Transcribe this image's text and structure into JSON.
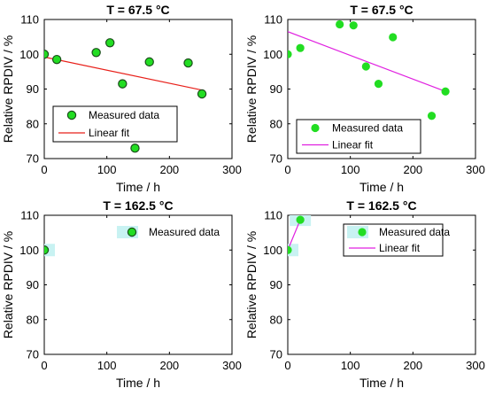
{
  "figure": {
    "colors": {
      "marker_fill": "#22dd22",
      "marker_edge": "#1a4d1a",
      "fit_red": "#e8201a",
      "fit_magenta": "#e020e0",
      "highlight": "#c8f2f2"
    }
  },
  "chart_data": [
    {
      "type": "scatter",
      "title": "T = 67.5 °C",
      "xlabel": "Time / h",
      "ylabel": "Relative RPDIV / %",
      "xlim": [
        0,
        300
      ],
      "ylim": [
        70,
        110
      ],
      "xticks": [
        "0",
        "100",
        "200",
        "300"
      ],
      "yticks": [
        "70",
        "80",
        "90",
        "100",
        "110"
      ],
      "marker_edge": true,
      "series": [
        {
          "name": "Measured data",
          "x": [
            0,
            20,
            83,
            105,
            125,
            145,
            168,
            230,
            252
          ],
          "y": [
            100,
            98.5,
            100.5,
            103.3,
            91.5,
            73,
            97.8,
            97.5,
            88.6
          ]
        }
      ],
      "fit": {
        "name": "Linear fit",
        "color": "#e8201a",
        "x": [
          0,
          252
        ],
        "y": [
          99.2,
          89.7
        ]
      },
      "legend": {
        "entries": [
          "Measured data",
          "Linear fit"
        ],
        "location": "lower-left"
      }
    },
    {
      "type": "scatter",
      "title": "T = 67.5 °C",
      "xlabel": "Time / h",
      "ylabel": "Relative RPDIV / %",
      "xlim": [
        0,
        300
      ],
      "ylim": [
        70,
        110
      ],
      "xticks": [
        "0",
        "100",
        "200",
        "300"
      ],
      "yticks": [
        "70",
        "80",
        "90",
        "100",
        "110"
      ],
      "marker_edge": false,
      "series": [
        {
          "name": "Measured data",
          "x": [
            0,
            20,
            83,
            105,
            125,
            145,
            168,
            230,
            252
          ],
          "y": [
            100,
            101.8,
            108.6,
            108.3,
            96.5,
            91.5,
            104.9,
            82.3,
            89.3
          ]
        }
      ],
      "fit": {
        "name": "Linear fit",
        "color": "#e020e0",
        "x": [
          0,
          252
        ],
        "y": [
          106.5,
          89.3
        ]
      },
      "legend": {
        "entries": [
          "Measured data",
          "Linear fit"
        ],
        "location": "lower-left"
      }
    },
    {
      "type": "scatter",
      "title": "T = 162.5 °C",
      "xlabel": "Time / h",
      "ylabel": "Relative RPDIV / %",
      "xlim": [
        0,
        300
      ],
      "ylim": [
        70,
        110
      ],
      "xticks": [
        "0",
        "100",
        "200",
        "300"
      ],
      "yticks": [
        "70",
        "80",
        "90",
        "100",
        "110"
      ],
      "marker_edge": true,
      "series": [
        {
          "name": "Measured data",
          "x": [
            0
          ],
          "y": [
            100
          ]
        }
      ],
      "legend": {
        "entries": [
          "Measured data"
        ],
        "location": "top-right"
      }
    },
    {
      "type": "scatter",
      "title": "T = 162.5 °C",
      "xlabel": "Time / h",
      "ylabel": "Relative RPDIV / %",
      "xlim": [
        0,
        300
      ],
      "ylim": [
        70,
        110
      ],
      "xticks": [
        "0",
        "100",
        "200",
        "300"
      ],
      "yticks": [
        "70",
        "80",
        "90",
        "100",
        "110"
      ],
      "marker_edge": false,
      "series": [
        {
          "name": "Measured data",
          "x": [
            0,
            20
          ],
          "y": [
            100,
            108.7
          ]
        }
      ],
      "fit": {
        "name": "Linear fit",
        "color": "#e020e0",
        "x": [
          0,
          20
        ],
        "y": [
          100,
          108.7
        ]
      },
      "legend": {
        "entries": [
          "Measured data",
          "Linear fit"
        ],
        "location": "top-right"
      }
    }
  ]
}
